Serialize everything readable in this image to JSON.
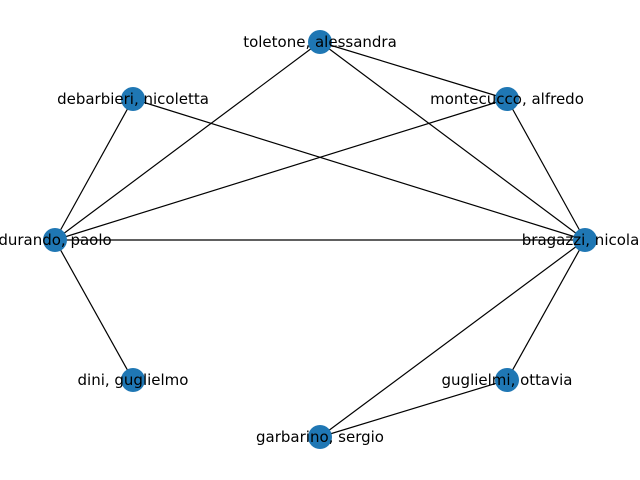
{
  "colors": {
    "node": "#1f77b4",
    "edge": "#000000",
    "label": "#000000",
    "background": "#ffffff"
  },
  "nodes": [
    {
      "id": "toletone",
      "label": "toletone, alessandra"
    },
    {
      "id": "montecucco",
      "label": "montecucco, alfredo"
    },
    {
      "id": "debarbieri",
      "label": "debarbieri, nicoletta"
    },
    {
      "id": "durando",
      "label": "durando, paolo"
    },
    {
      "id": "bragazzi",
      "label": "bragazzi, nicola l"
    },
    {
      "id": "dini",
      "label": "dini, guglielmo"
    },
    {
      "id": "guglielmi",
      "label": "guglielmi, ottavia"
    },
    {
      "id": "garbarino",
      "label": "garbarino, sergio"
    }
  ],
  "edges": [
    [
      "toletone",
      "montecucco"
    ],
    [
      "toletone",
      "durando"
    ],
    [
      "toletone",
      "bragazzi"
    ],
    [
      "montecucco",
      "durando"
    ],
    [
      "montecucco",
      "bragazzi"
    ],
    [
      "debarbieri",
      "durando"
    ],
    [
      "debarbieri",
      "bragazzi"
    ],
    [
      "durando",
      "bragazzi"
    ],
    [
      "durando",
      "dini"
    ],
    [
      "bragazzi",
      "guglielmi"
    ],
    [
      "bragazzi",
      "garbarino"
    ],
    [
      "guglielmi",
      "garbarino"
    ]
  ]
}
